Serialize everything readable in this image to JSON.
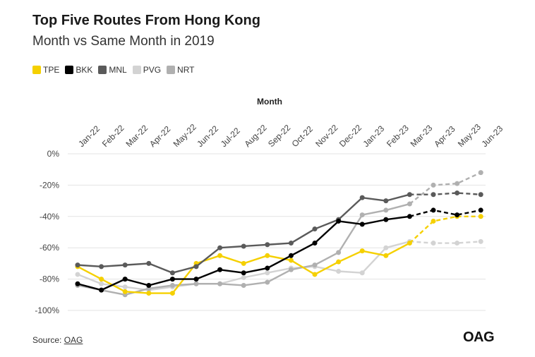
{
  "header": {
    "title": "Top Five Routes From Hong Kong",
    "subtitle": "Month vs Same Month in 2019"
  },
  "footer": {
    "source_label": "Source: ",
    "source_link": "OAG",
    "logo_text": "OAG"
  },
  "chart_data": {
    "type": "line",
    "title": "Top Five Routes From Hong Kong",
    "subtitle": "Month vs Same Month in 2019",
    "xlabel": "Month",
    "xaxis_position": "top",
    "ylabel": "",
    "ylim": [
      -100,
      0
    ],
    "yticks": [
      0,
      -20,
      -40,
      -60,
      -80,
      -100
    ],
    "ytick_labels": [
      "0%",
      "-20%",
      "-40%",
      "-60%",
      "-80%",
      "-100%"
    ],
    "categories": [
      "Jan-22",
      "Feb-22",
      "Mar-22",
      "Apr-22",
      "May-22",
      "Jun-22",
      "Jul-22",
      "Aug-22",
      "Sep-22",
      "Oct-22",
      "Nov-22",
      "Dec-22",
      "Jan-23",
      "Feb-23",
      "Mar-23",
      "Apr-23",
      "May-23",
      "Jun-23"
    ],
    "actual_through": "Mar-23",
    "forecast_style": "dashed",
    "grid": true,
    "legend_position": "top-left",
    "series": [
      {
        "name": "TPE",
        "color": "#f5d000",
        "values": [
          -72,
          -80,
          -88,
          -89,
          -89,
          -70,
          -65,
          -70,
          -65,
          -68,
          -77,
          -69,
          -62,
          -65,
          -57,
          -43,
          -40,
          -40
        ]
      },
      {
        "name": "BKK",
        "color": "#000000",
        "values": [
          -83,
          -87,
          -80,
          -84,
          -80,
          -80,
          -74,
          -76,
          -73,
          -65,
          -57,
          -43,
          -45,
          -42,
          -40,
          -36,
          -39,
          -36
        ]
      },
      {
        "name": "MNL",
        "color": "#5a5a5a",
        "values": [
          -71,
          -72,
          -71,
          -70,
          -76,
          -72,
          -60,
          -59,
          -58,
          -57,
          -48,
          -42,
          -28,
          -30,
          -26,
          -26,
          -25,
          -26
        ]
      },
      {
        "name": "PVG",
        "color": "#d3d3d3",
        "values": [
          -77,
          -83,
          -85,
          -87,
          -85,
          -83,
          -83,
          -79,
          -76,
          -73,
          -72,
          -75,
          -76,
          -60,
          -56,
          -57,
          -57,
          -56
        ]
      },
      {
        "name": "NRT",
        "color": "#b0b0b0",
        "values": [
          -84,
          -87,
          -90,
          -86,
          -84,
          -83,
          -83,
          -84,
          -82,
          -74,
          -71,
          -63,
          -39,
          -36,
          -32,
          -20,
          -19,
          -12
        ]
      }
    ]
  }
}
